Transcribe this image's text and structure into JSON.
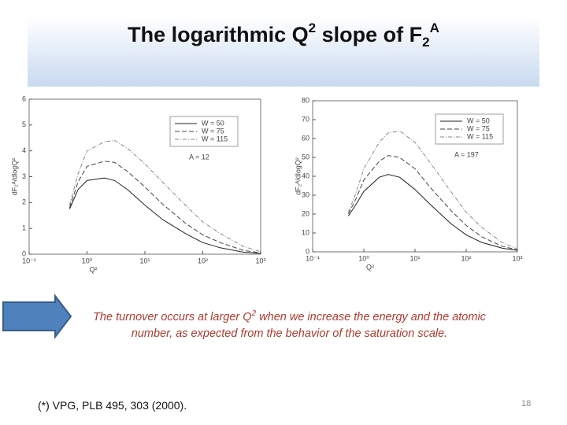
{
  "slide": {
    "title": [
      "The logarithmic Q",
      "2",
      " slope of F",
      "2",
      "A"
    ],
    "caption": [
      "The turnover occurs at larger Q",
      "2",
      " when we increase the energy and the atomic number, as expected from the behavior of the saturation scale."
    ],
    "footnote": "(*) VPG, PLB 495, 303 (2000).",
    "page_number": "18"
  },
  "chart_data": [
    {
      "type": "line",
      "x_label": "Q²",
      "y_label": "dF₂ᴬ/dlogQ²",
      "annotation": "A = 12",
      "x_log": true,
      "legend": "upper right",
      "x": [
        0.5,
        0.7,
        1,
        2,
        3,
        5,
        10,
        20,
        50,
        100,
        200,
        500,
        1000
      ],
      "xlim": [
        0.1,
        1000
      ],
      "xticks": [
        {
          "value": 0.1,
          "label": "10⁻¹"
        },
        {
          "value": 1,
          "label": "10⁰"
        },
        {
          "value": 10,
          "label": "10¹"
        },
        {
          "value": 100,
          "label": "10²"
        },
        {
          "value": 1000,
          "label": "10³"
        }
      ],
      "ylim": [
        0,
        6
      ],
      "yticks": [
        0,
        1,
        2,
        3,
        4,
        5,
        6
      ],
      "series": [
        {
          "name": "W = 50",
          "color": "#222222",
          "style": "solid",
          "values": [
            1.75,
            2.5,
            2.85,
            2.95,
            2.85,
            2.5,
            1.9,
            1.35,
            0.8,
            0.45,
            0.25,
            0.08,
            0.03
          ]
        },
        {
          "name": "W = 75",
          "color": "#444444",
          "style": "dashed",
          "values": [
            1.8,
            2.8,
            3.4,
            3.6,
            3.55,
            3.2,
            2.6,
            1.95,
            1.2,
            0.75,
            0.45,
            0.15,
            0.05
          ]
        },
        {
          "name": "W = 115",
          "color": "#888888",
          "style": "dashdot",
          "values": [
            1.9,
            3.1,
            4.0,
            4.35,
            4.4,
            4.1,
            3.5,
            2.8,
            1.9,
            1.25,
            0.8,
            0.3,
            0.1
          ]
        }
      ]
    },
    {
      "type": "line",
      "x_label": "Q²",
      "y_label": "dF₂ᴬ/dlogQ²",
      "annotation": "A = 197",
      "x_log": true,
      "legend": "upper right",
      "x": [
        0.5,
        0.7,
        1,
        2,
        3,
        5,
        10,
        20,
        50,
        100,
        200,
        500,
        1000
      ],
      "xlim": [
        0.1,
        1000
      ],
      "xticks": [
        {
          "value": 0.1,
          "label": "10⁻¹"
        },
        {
          "value": 1,
          "label": "10⁰"
        },
        {
          "value": 10,
          "label": "10¹"
        },
        {
          "value": 100,
          "label": "10²"
        },
        {
          "value": 1000,
          "label": "10³"
        }
      ],
      "ylim": [
        0,
        80
      ],
      "yticks": [
        0,
        10,
        20,
        30,
        40,
        50,
        60,
        70,
        80
      ],
      "series": [
        {
          "name": "W = 50",
          "color": "#222222",
          "style": "solid",
          "values": [
            19,
            25,
            32,
            39.5,
            41,
            39.5,
            33,
            25,
            15,
            9,
            5,
            2,
            0.8
          ]
        },
        {
          "name": "W = 75",
          "color": "#444444",
          "style": "dashed",
          "values": [
            20,
            28,
            38,
            48,
            51,
            50,
            44,
            34,
            22,
            14,
            8,
            3,
            1
          ]
        },
        {
          "name": "W = 115",
          "color": "#888888",
          "style": "dashdot",
          "values": [
            21,
            31,
            44,
            58,
            63,
            64,
            58,
            47,
            32,
            21,
            13,
            5,
            1.5
          ]
        }
      ]
    }
  ]
}
